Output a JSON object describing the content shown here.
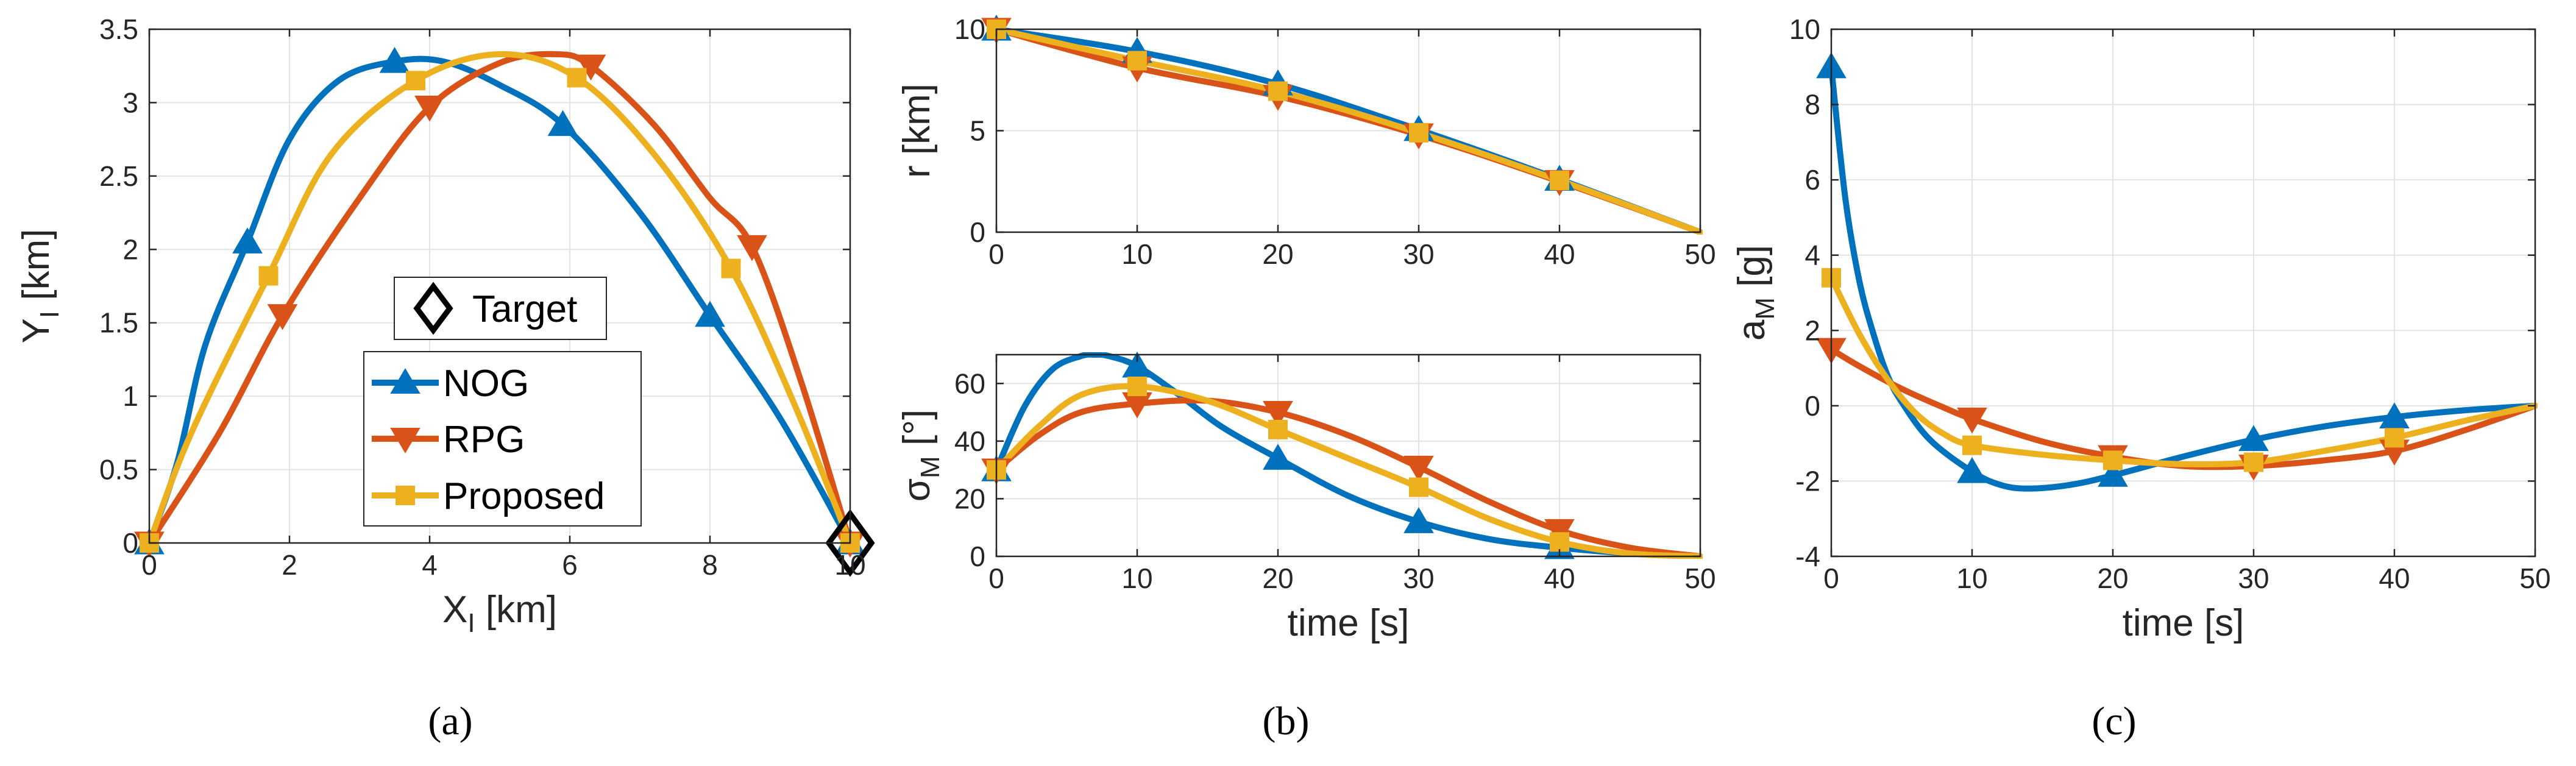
{
  "colors": {
    "NOG": "#0072BD",
    "RPG": "#D95319",
    "Proposed": "#EDB120",
    "Target": "#000000"
  },
  "legend": {
    "target": "Target",
    "nog": "NOG",
    "rpg": "RPG",
    "proposed": "Proposed"
  },
  "captions": {
    "a": "(a)",
    "b": "(b)",
    "c": "(c)"
  },
  "chart_data": [
    {
      "id": "a",
      "type": "line",
      "xlabel": "X_I [km]",
      "ylabel": "Y_I [km]",
      "xlim": [
        0,
        10
      ],
      "ylim": [
        0,
        3.5
      ],
      "xticks": [
        0,
        2,
        4,
        6,
        8,
        10
      ],
      "yticks": [
        0,
        0.5,
        1,
        1.5,
        2,
        2.5,
        3,
        3.5
      ],
      "grid": true,
      "legend_placement": "center",
      "target": {
        "x": 10,
        "y": 0
      },
      "series": [
        {
          "name": "NOG",
          "marker": "triangle-up",
          "x": [
            0,
            0.4,
            0.8,
            1.4,
            2.0,
            2.7,
            3.5,
            4.2,
            5.0,
            5.9,
            7.0,
            8.0,
            9.0,
            10.0
          ],
          "y": [
            0,
            0.55,
            1.35,
            2.05,
            2.75,
            3.15,
            3.28,
            3.28,
            3.12,
            2.85,
            2.25,
            1.55,
            0.85,
            0
          ],
          "mx": [
            0,
            1.4,
            3.5,
            5.9,
            8.0,
            10.0
          ],
          "my": [
            0,
            2.05,
            3.28,
            2.85,
            1.55,
            0
          ]
        },
        {
          "name": "RPG",
          "marker": "triangle-down",
          "x": [
            0,
            1.0,
            1.9,
            3.0,
            4.0,
            5.0,
            5.8,
            6.3,
            7.2,
            8.0,
            8.6,
            9.3,
            10.0
          ],
          "y": [
            0,
            0.75,
            1.55,
            2.35,
            2.97,
            3.27,
            3.33,
            3.25,
            2.85,
            2.35,
            2.02,
            1.1,
            0
          ],
          "mx": [
            0,
            1.9,
            4.0,
            6.3,
            8.6,
            10.0
          ],
          "my": [
            0,
            1.55,
            2.97,
            3.25,
            2.02,
            0
          ]
        },
        {
          "name": "Proposed",
          "marker": "square",
          "x": [
            0,
            0.6,
            1.7,
            2.6,
            3.8,
            5.0,
            6.1,
            7.2,
            8.3,
            9.2,
            10.0
          ],
          "y": [
            0,
            0.75,
            1.82,
            2.65,
            3.15,
            3.33,
            3.17,
            2.65,
            1.87,
            0.95,
            0
          ],
          "mx": [
            0,
            1.7,
            3.8,
            6.1,
            8.3,
            10.0
          ],
          "my": [
            0,
            1.82,
            3.15,
            3.17,
            1.87,
            0
          ]
        }
      ]
    },
    {
      "id": "b-top",
      "type": "line",
      "xlabel": "",
      "ylabel": "r [km]",
      "xlim": [
        0,
        50
      ],
      "ylim": [
        0,
        10
      ],
      "xticks": [
        0,
        10,
        20,
        30,
        40,
        50
      ],
      "yticks": [
        0,
        5,
        10
      ],
      "grid": true,
      "series": [
        {
          "name": "NOG",
          "marker": "triangle-up",
          "x": [
            0,
            10,
            20,
            30,
            40,
            50
          ],
          "y": [
            10,
            8.9,
            7.3,
            5.05,
            2.6,
            0
          ],
          "mx": [
            0,
            10,
            20,
            30,
            40
          ],
          "my": [
            10,
            8.9,
            7.3,
            5.05,
            2.6
          ]
        },
        {
          "name": "RPG",
          "marker": "triangle-down",
          "x": [
            0,
            10,
            20,
            30,
            40,
            50
          ],
          "y": [
            10,
            8.1,
            6.7,
            4.8,
            2.5,
            0
          ],
          "mx": [
            0,
            10,
            20,
            30,
            40
          ],
          "my": [
            10,
            8.1,
            6.7,
            4.8,
            2.5
          ]
        },
        {
          "name": "Proposed",
          "marker": "square",
          "x": [
            0,
            10,
            20,
            30,
            40,
            50
          ],
          "y": [
            10,
            8.45,
            6.95,
            4.9,
            2.55,
            0
          ],
          "mx": [
            0,
            10,
            20,
            30,
            40
          ],
          "my": [
            10,
            8.45,
            6.95,
            4.9,
            2.55
          ]
        }
      ]
    },
    {
      "id": "b-bottom",
      "type": "line",
      "xlabel": "time [s]",
      "ylabel": "σ_M [°]",
      "xlim": [
        0,
        50
      ],
      "ylim": [
        0,
        70
      ],
      "xticks": [
        0,
        10,
        20,
        30,
        40,
        50
      ],
      "yticks": [
        0,
        20,
        40,
        60
      ],
      "grid": true,
      "series": [
        {
          "name": "NOG",
          "marker": "triangle-up",
          "x": [
            0,
            2,
            4,
            6,
            7,
            8,
            10,
            13,
            16,
            20,
            25,
            30,
            35,
            40,
            45,
            50
          ],
          "y": [
            30,
            52,
            65,
            69.5,
            70,
            69.5,
            66,
            56,
            45,
            34,
            21,
            12,
            6,
            3,
            1,
            0
          ],
          "mx": [
            0,
            10,
            20,
            30,
            40
          ],
          "my": [
            30,
            66,
            34,
            12,
            3
          ]
        },
        {
          "name": "RPG",
          "marker": "triangle-down",
          "x": [
            0,
            3,
            6,
            10,
            15,
            20,
            25,
            30,
            35,
            40,
            45,
            50
          ],
          "y": [
            30,
            42,
            50,
            53,
            54,
            50,
            42,
            31,
            19,
            9,
            3,
            0
          ],
          "mx": [
            0,
            10,
            20,
            30,
            40
          ],
          "my": [
            30,
            53,
            50,
            31,
            9
          ]
        },
        {
          "name": "Proposed",
          "marker": "square",
          "x": [
            0,
            3,
            6,
            10,
            15,
            20,
            25,
            30,
            35,
            40,
            45,
            50
          ],
          "y": [
            30,
            45,
            56,
            59,
            54,
            44,
            34,
            24,
            13,
            5,
            1,
            0
          ],
          "mx": [
            0,
            10,
            20,
            30,
            40
          ],
          "my": [
            30,
            59,
            44,
            24,
            5
          ]
        }
      ]
    },
    {
      "id": "c",
      "type": "line",
      "xlabel": "time [s]",
      "ylabel": "a_M [g]",
      "xlim": [
        0,
        50
      ],
      "ylim": [
        -4,
        10
      ],
      "xticks": [
        0,
        10,
        20,
        30,
        40,
        50
      ],
      "yticks": [
        -4,
        -2,
        0,
        2,
        4,
        6,
        8,
        10
      ],
      "grid": true,
      "series": [
        {
          "name": "NOG",
          "marker": "triangle-up",
          "x": [
            0,
            1,
            2,
            3,
            4,
            5,
            7,
            10,
            12,
            14,
            17,
            20,
            25,
            30,
            35,
            40,
            45,
            50
          ],
          "y": [
            9,
            5.5,
            3.3,
            1.9,
            0.8,
            0.1,
            -0.9,
            -1.75,
            -2.1,
            -2.2,
            -2.1,
            -1.85,
            -1.35,
            -0.9,
            -0.55,
            -0.3,
            -0.12,
            0
          ],
          "mx": [
            0,
            10,
            20,
            30,
            40
          ],
          "my": [
            9,
            -1.75,
            -1.85,
            -0.9,
            -0.3
          ]
        },
        {
          "name": "RPG",
          "marker": "triangle-down",
          "x": [
            0,
            2,
            5,
            8,
            10,
            15,
            20,
            25,
            30,
            35,
            40,
            45,
            50
          ],
          "y": [
            1.5,
            1.05,
            0.45,
            -0.05,
            -0.35,
            -0.95,
            -1.35,
            -1.6,
            -1.6,
            -1.45,
            -1.2,
            -0.65,
            0
          ],
          "mx": [
            0,
            10,
            20,
            30,
            40
          ],
          "my": [
            1.5,
            -0.35,
            -1.35,
            -1.6,
            -1.2
          ]
        },
        {
          "name": "Proposed",
          "marker": "square",
          "x": [
            0,
            2,
            4,
            6,
            8,
            10,
            15,
            20,
            25,
            30,
            35,
            40,
            45,
            50
          ],
          "y": [
            3.4,
            1.9,
            0.7,
            -0.2,
            -0.75,
            -1.05,
            -1.3,
            -1.45,
            -1.55,
            -1.5,
            -1.2,
            -0.85,
            -0.4,
            0
          ],
          "mx": [
            0,
            10,
            20,
            30,
            40
          ],
          "my": [
            3.4,
            -1.05,
            -1.45,
            -1.5,
            -0.85
          ]
        }
      ]
    }
  ]
}
